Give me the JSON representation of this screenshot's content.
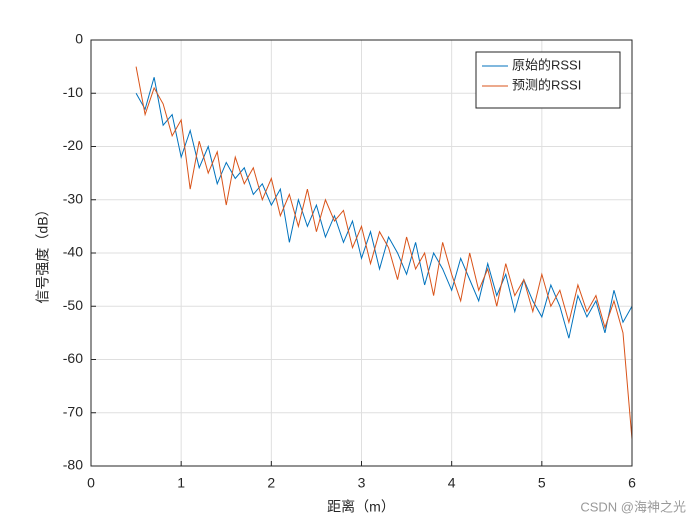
{
  "chart_data": {
    "type": "line",
    "xlabel": "距离（m）",
    "ylabel": "信号强度（dB）",
    "x": [
      0.5,
      0.6,
      0.7,
      0.8,
      0.9,
      1.0,
      1.1,
      1.2,
      1.3,
      1.4,
      1.5,
      1.6,
      1.7,
      1.8,
      1.9,
      2.0,
      2.1,
      2.2,
      2.3,
      2.4,
      2.5,
      2.6,
      2.7,
      2.8,
      2.9,
      3.0,
      3.1,
      3.2,
      3.3,
      3.4,
      3.5,
      3.6,
      3.7,
      3.8,
      3.9,
      4.0,
      4.1,
      4.2,
      4.3,
      4.4,
      4.5,
      4.6,
      4.7,
      4.8,
      4.9,
      5.0,
      5.1,
      5.2,
      5.3,
      5.4,
      5.5,
      5.6,
      5.7,
      5.8,
      5.9,
      6.0
    ],
    "series": [
      {
        "name": "原始的RSSI",
        "color": "#0072bd",
        "values": [
          -10,
          -13,
          -7,
          -16,
          -14,
          -22,
          -17,
          -24,
          -20,
          -27,
          -23,
          -26,
          -24,
          -29,
          -27,
          -31,
          -28,
          -38,
          -30,
          -35,
          -31,
          -37,
          -33,
          -38,
          -34,
          -41,
          -36,
          -43,
          -37,
          -40,
          -44,
          -38,
          -46,
          -40,
          -43,
          -47,
          -41,
          -45,
          -49,
          -42,
          -48,
          -44,
          -51,
          -45,
          -49,
          -52,
          -46,
          -50,
          -56,
          -48,
          -52,
          -49,
          -55,
          -47,
          -53,
          -50
        ]
      },
      {
        "name": "预测的RSSI",
        "color": "#d95319",
        "values": [
          -5,
          -14,
          -9,
          -12,
          -18,
          -15,
          -28,
          -19,
          -25,
          -21,
          -31,
          -22,
          -27,
          -24,
          -30,
          -26,
          -33,
          -29,
          -35,
          -28,
          -36,
          -30,
          -34,
          -32,
          -39,
          -35,
          -42,
          -36,
          -39,
          -45,
          -37,
          -43,
          -40,
          -48,
          -38,
          -44,
          -49,
          -40,
          -47,
          -43,
          -50,
          -42,
          -48,
          -45,
          -51,
          -44,
          -50,
          -47,
          -53,
          -46,
          -51,
          -48,
          -54,
          -49,
          -55,
          -75
        ]
      }
    ],
    "xlim": [
      0,
      6
    ],
    "xticks": [
      0,
      1,
      2,
      3,
      4,
      5,
      6
    ],
    "ylim": [
      -80,
      0
    ],
    "yticks": [
      0,
      -10,
      -20,
      -30,
      -40,
      -50,
      -60,
      -70,
      -80
    ],
    "grid": true,
    "legend": "northeast",
    "watermark": "CSDN @海神之光"
  }
}
